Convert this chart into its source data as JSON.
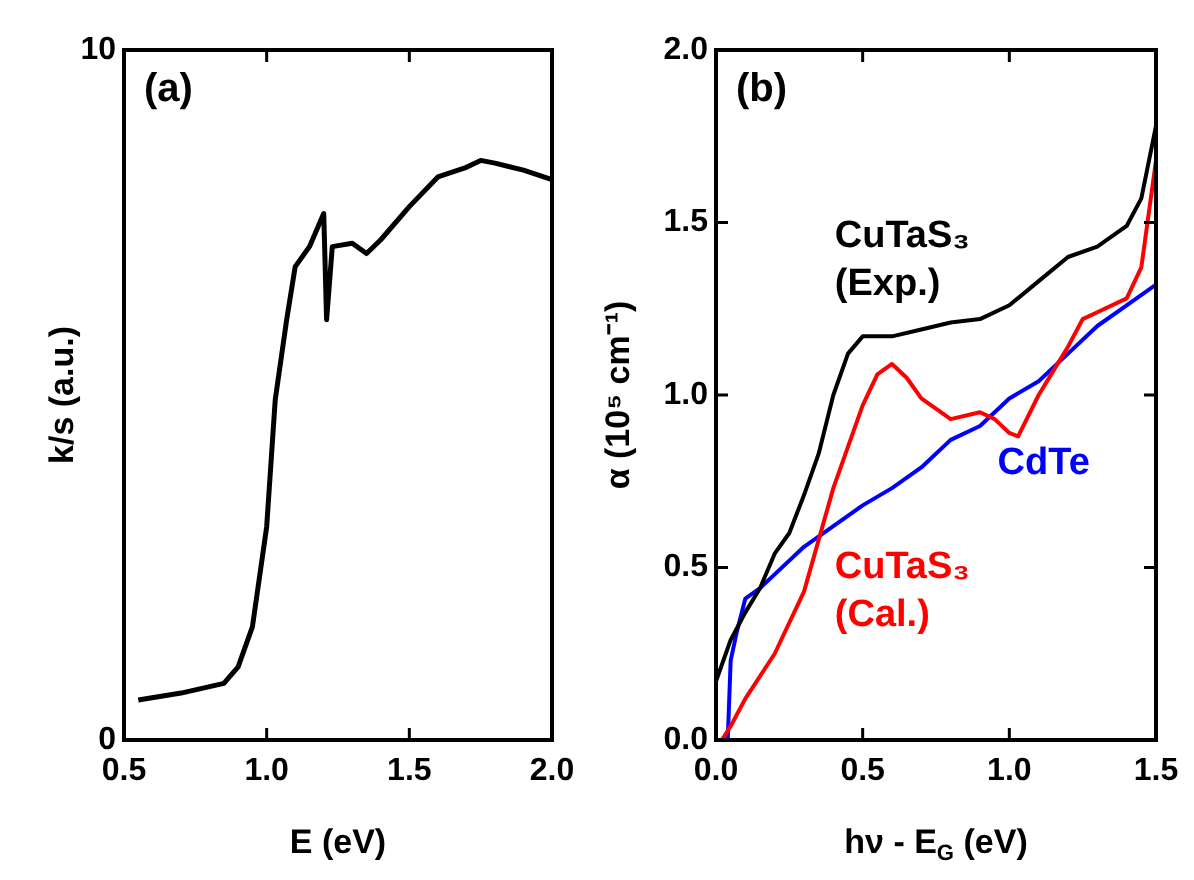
{
  "chart_data": [
    {
      "type": "line",
      "xlabel": "E (eV)",
      "ylabel": "k/s (a.u.)",
      "annotations": [
        "(a)"
      ],
      "xlim": [
        0.5,
        2.0
      ],
      "ylim": [
        0,
        10
      ],
      "xticks": [
        {
          "value": 0.5,
          "label": "0.5"
        },
        {
          "value": 1,
          "label": "1.0"
        },
        {
          "value": 1.5,
          "label": "1.5"
        },
        {
          "value": 2,
          "label": "2.0"
        }
      ],
      "yticks": [
        0,
        10
      ],
      "legend": false,
      "marker": "none",
      "series": [
        {
          "color": "#000000",
          "x": [
            0.55,
            0.7,
            0.85,
            0.9,
            0.95,
            1.0,
            1.03,
            1.07,
            1.1,
            1.15,
            1.2,
            1.21,
            1.23,
            1.3,
            1.35,
            1.4,
            1.5,
            1.6,
            1.7,
            1.75,
            1.8,
            1.9,
            2.0
          ],
          "values": [
            0.58,
            0.68,
            0.82,
            1.06,
            1.64,
            3.09,
            4.93,
            6.09,
            6.86,
            7.15,
            7.63,
            6.09,
            7.15,
            7.2,
            7.05,
            7.25,
            7.73,
            8.16,
            8.3,
            8.4,
            8.36,
            8.26,
            8.12
          ]
        }
      ]
    },
    {
      "type": "line",
      "xlabel": "hν - E$_{G}$ (eV)",
      "ylabel": "α (10⁵ cm⁻¹)",
      "annotations": [
        "(b)"
      ],
      "xlim": [
        0,
        1.5
      ],
      "ylim": [
        0,
        2
      ],
      "xticks": [
        {
          "value": 0,
          "label": "0.0"
        },
        {
          "value": 0.5,
          "label": "0.5"
        },
        {
          "value": 1,
          "label": "1.0"
        },
        {
          "value": 1.5,
          "label": "1.5"
        }
      ],
      "yticks": [
        {
          "value": 0,
          "label": "0.0"
        },
        {
          "value": 0.5,
          "label": "0.5"
        },
        {
          "value": 1,
          "label": "1.0"
        },
        {
          "value": 1.5,
          "label": "1.5"
        },
        {
          "value": 2,
          "label": "2.0"
        }
      ],
      "legend": false,
      "marker": "none",
      "series": [
        {
          "name": "CuTaS₃ (Exp.)",
          "color": "#000000",
          "x": [
            0,
            0.05,
            0.1,
            0.15,
            0.2,
            0.25,
            0.3,
            0.35,
            0.4,
            0.45,
            0.5,
            0.6,
            0.7,
            0.8,
            0.9,
            1.0,
            1.1,
            1.2,
            1.3,
            1.4,
            1.45,
            1.5
          ],
          "values": [
            0.17,
            0.29,
            0.37,
            0.44,
            0.54,
            0.6,
            0.71,
            0.83,
            1.0,
            1.12,
            1.17,
            1.17,
            1.19,
            1.21,
            1.22,
            1.26,
            1.33,
            1.4,
            1.43,
            1.49,
            1.57,
            1.78
          ]
        },
        {
          "name": "CuTaS₃ (Cal.)",
          "color": "#ff0000",
          "x": [
            0.02,
            0.05,
            0.1,
            0.2,
            0.3,
            0.35,
            0.4,
            0.5,
            0.55,
            0.6,
            0.65,
            0.7,
            0.8,
            0.9,
            0.95,
            1.0,
            1.03,
            1.1,
            1.15,
            1.2,
            1.25,
            1.3,
            1.4,
            1.45,
            1.5
          ],
          "values": [
            0,
            0.04,
            0.12,
            0.25,
            0.43,
            0.58,
            0.73,
            0.97,
            1.06,
            1.09,
            1.05,
            0.99,
            0.93,
            0.95,
            0.93,
            0.89,
            0.88,
            1.0,
            1.07,
            1.14,
            1.22,
            1.24,
            1.28,
            1.37,
            1.68
          ]
        },
        {
          "name": "CdTe",
          "color": "#0000ff",
          "x": [
            0.04,
            0.05,
            0.07,
            0.1,
            0.15,
            0.2,
            0.3,
            0.4,
            0.5,
            0.6,
            0.7,
            0.8,
            0.9,
            1.0,
            1.1,
            1.2,
            1.3,
            1.4,
            1.5
          ],
          "values": [
            0,
            0.23,
            0.31,
            0.41,
            0.44,
            0.48,
            0.56,
            0.62,
            0.68,
            0.73,
            0.79,
            0.87,
            0.91,
            0.99,
            1.04,
            1.12,
            1.2,
            1.26,
            1.32
          ]
        }
      ]
    }
  ]
}
